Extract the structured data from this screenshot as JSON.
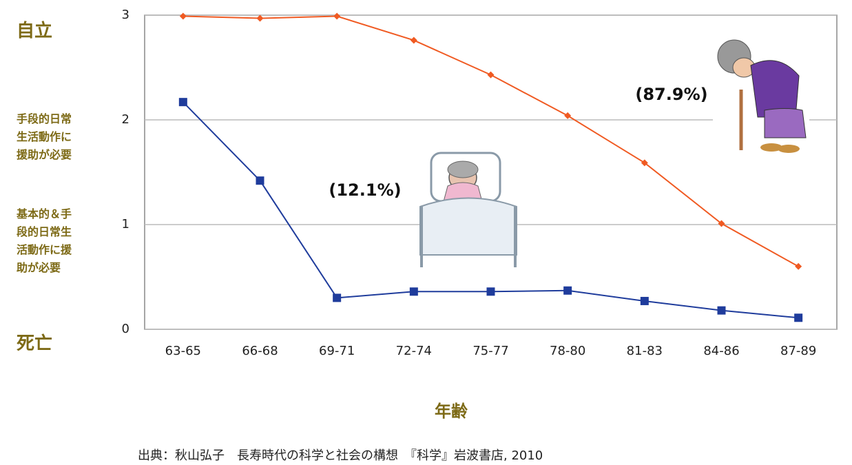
{
  "chart_data": {
    "type": "line",
    "x_label": "年齢",
    "source": "出典：秋山弘子　長寿時代の科学と社会の構想　『科学』岩波書店, 2010",
    "level_labels": [
      "自立",
      "手段的日常生活動作に援助が必要",
      "基本的＆手段的日常生活動作に援助が必要",
      "死亡"
    ],
    "categories": [
      "63-65",
      "66-68",
      "69-71",
      "72-74",
      "75-77",
      "78-80",
      "81-83",
      "84-86",
      "87-89"
    ],
    "series": [
      {
        "color": "#f05a22",
        "marker": "diamond",
        "values": [
          2.99,
          2.97,
          2.99,
          2.76,
          2.43,
          2.04,
          1.59,
          1.01,
          0.6
        ]
      },
      {
        "color": "#1f3c9c",
        "marker": "square",
        "values": [
          2.17,
          1.42,
          0.3,
          0.36,
          0.36,
          0.37,
          0.27,
          0.18,
          0.11
        ]
      }
    ],
    "annotations": [
      "(87.9%)",
      "(12.1%)"
    ],
    "ylim": [
      0,
      3
    ],
    "yticks": [
      0,
      1,
      2,
      3
    ],
    "grid": true
  }
}
